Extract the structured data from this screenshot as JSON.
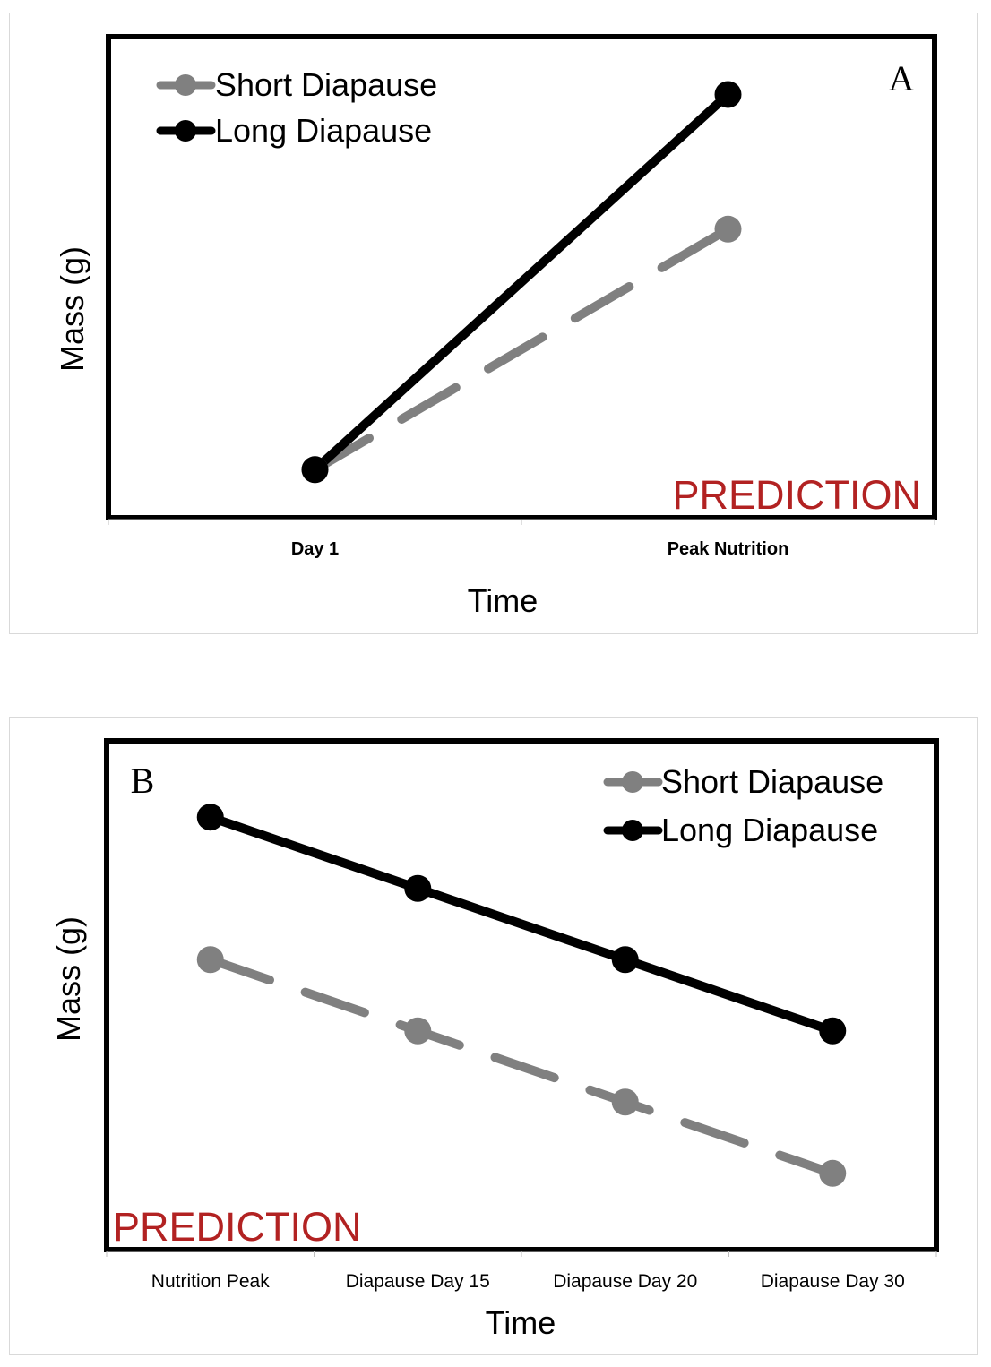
{
  "chart_data": [
    {
      "type": "line",
      "panel_label": "A",
      "annotation": "PREDICTION",
      "xlabel": "Time",
      "ylabel": "Mass (g)",
      "categories": [
        "Day 1",
        "Peak Nutrition"
      ],
      "ylim": [
        0,
        10
      ],
      "grid": false,
      "legend_position": "top-left",
      "series": [
        {
          "name": "Short Diapause",
          "values": [
            1.0,
            6.0
          ],
          "color": "#808080",
          "dashed": true
        },
        {
          "name": "Long Diapause",
          "values": [
            1.0,
            8.8
          ],
          "color": "#000000",
          "dashed": false
        }
      ]
    },
    {
      "type": "line",
      "panel_label": "B",
      "annotation": "PREDICTION",
      "xlabel": "Time",
      "ylabel": "Mass (g)",
      "categories": [
        "Nutrition Peak",
        "Diapause  Day 15",
        "Diapause  Day 20",
        "Diapause  Day 30"
      ],
      "ylim": [
        0,
        10
      ],
      "grid": false,
      "legend_position": "top-right",
      "series": [
        {
          "name": "Short Diapause",
          "values": [
            5.7,
            4.3,
            2.9,
            1.5
          ],
          "color": "#808080",
          "dashed": true
        },
        {
          "name": "Long Diapause",
          "values": [
            8.5,
            7.1,
            5.7,
            4.3
          ],
          "color": "#000000",
          "dashed": false
        }
      ]
    }
  ]
}
